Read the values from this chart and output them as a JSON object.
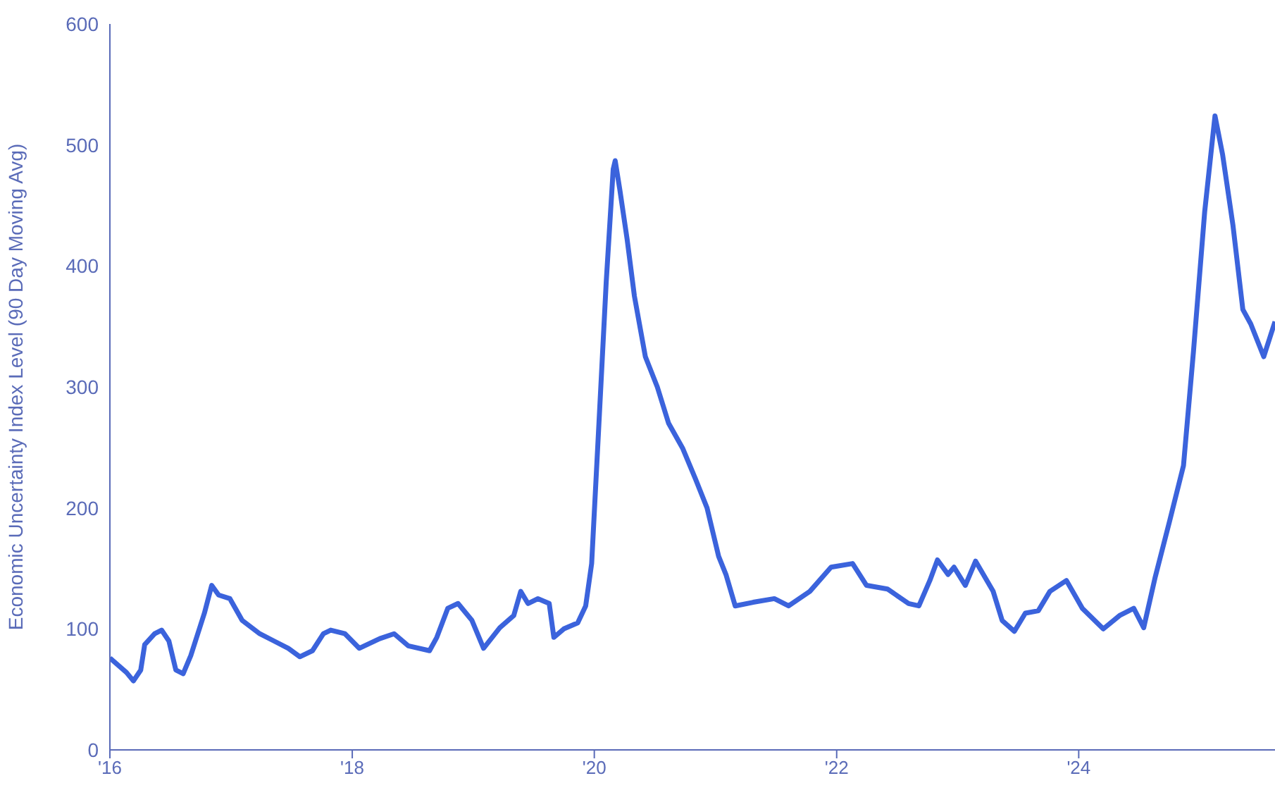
{
  "chart_data": {
    "type": "line",
    "ylabel": "Economic Uncertainty Index Level (90 Day Moving Avg)",
    "xlim": [
      "2016-01-01",
      "2025-08-15"
    ],
    "xticks": [
      {
        "value": "2016-01-01",
        "label": "'16"
      },
      {
        "value": "2018-01-01",
        "label": "'18"
      },
      {
        "value": "2020-01-01",
        "label": "'20"
      },
      {
        "value": "2022-01-01",
        "label": "'22"
      },
      {
        "value": "2024-01-01",
        "label": "'24"
      }
    ],
    "ylim": [
      0,
      600
    ],
    "yticks": [
      0,
      100,
      200,
      300,
      400,
      500,
      600
    ],
    "grid": false,
    "legend": false,
    "marker": "none",
    "line_style": "solid",
    "series": [
      {
        "color": "#3b63dc",
        "x": [
          "2016-01-01",
          "2016-02-20",
          "2016-03-12",
          "2016-04-03",
          "2016-04-15",
          "2016-05-15",
          "2016-06-05",
          "2016-06-27",
          "2016-07-18",
          "2016-08-09",
          "2016-09-01",
          "2016-10-12",
          "2016-11-03",
          "2016-11-24",
          "2016-12-28",
          "2017-02-03",
          "2017-03-28",
          "2017-05-10",
          "2017-06-22",
          "2017-07-27",
          "2017-09-03",
          "2017-10-06",
          "2017-10-28",
          "2017-12-10",
          "2018-01-22",
          "2018-03-25",
          "2018-05-07",
          "2018-06-19",
          "2018-08-22",
          "2018-09-13",
          "2018-10-16",
          "2018-11-16",
          "2018-12-28",
          "2019-02-01",
          "2019-03-22",
          "2019-05-03",
          "2019-05-24",
          "2019-06-15",
          "2019-07-15",
          "2019-08-18",
          "2019-09-01",
          "2019-10-01",
          "2019-11-12",
          "2019-12-06",
          "2019-12-24",
          "2020-01-15",
          "2020-02-06",
          "2020-02-27",
          "2020-03-04",
          "2020-03-18",
          "2020-04-09",
          "2020-05-01",
          "2020-06-03",
          "2020-07-09",
          "2020-08-12",
          "2020-09-24",
          "2020-11-01",
          "2020-12-06",
          "2021-01-10",
          "2021-02-01",
          "2021-03-01",
          "2021-04-24",
          "2021-06-27",
          "2021-08-09",
          "2021-10-12",
          "2021-12-15",
          "2022-02-18",
          "2022-04-01",
          "2022-06-03",
          "2022-08-06",
          "2022-09-06",
          "2022-10-09",
          "2022-11-01",
          "2022-12-03",
          "2022-12-21",
          "2023-01-24",
          "2023-02-24",
          "2023-04-18",
          "2023-05-15",
          "2023-06-21",
          "2023-07-24",
          "2023-09-01",
          "2023-10-06",
          "2023-11-25",
          "2024-01-12",
          "2024-03-15",
          "2024-05-03",
          "2024-06-15",
          "2024-07-15",
          "2024-08-18",
          "2024-10-01",
          "2024-11-12",
          "2024-12-12",
          "2025-01-15",
          "2025-02-15",
          "2025-03-10",
          "2025-04-10",
          "2025-05-10",
          "2025-06-03",
          "2025-07-12",
          "2025-08-15"
        ],
        "values": [
          76,
          64,
          57,
          66,
          87,
          96,
          99,
          90,
          66,
          63,
          78,
          113,
          136,
          128,
          125,
          107,
          96,
          90,
          84,
          77,
          82,
          96,
          99,
          96,
          84,
          92,
          96,
          86,
          82,
          93,
          117,
          121,
          107,
          84,
          101,
          111,
          131,
          121,
          125,
          121,
          93,
          100,
          105,
          119,
          154,
          270,
          387,
          480,
          487,
          463,
          422,
          375,
          325,
          300,
          270,
          249,
          224,
          200,
          160,
          145,
          119,
          122,
          125,
          119,
          131,
          151,
          154,
          136,
          133,
          121,
          119,
          140,
          157,
          145,
          151,
          136,
          156,
          131,
          107,
          98,
          113,
          115,
          131,
          140,
          117,
          100,
          111,
          117,
          101,
          142,
          189,
          235,
          329,
          445,
          524,
          492,
          434,
          364,
          352,
          325,
          354
        ]
      }
    ]
  }
}
